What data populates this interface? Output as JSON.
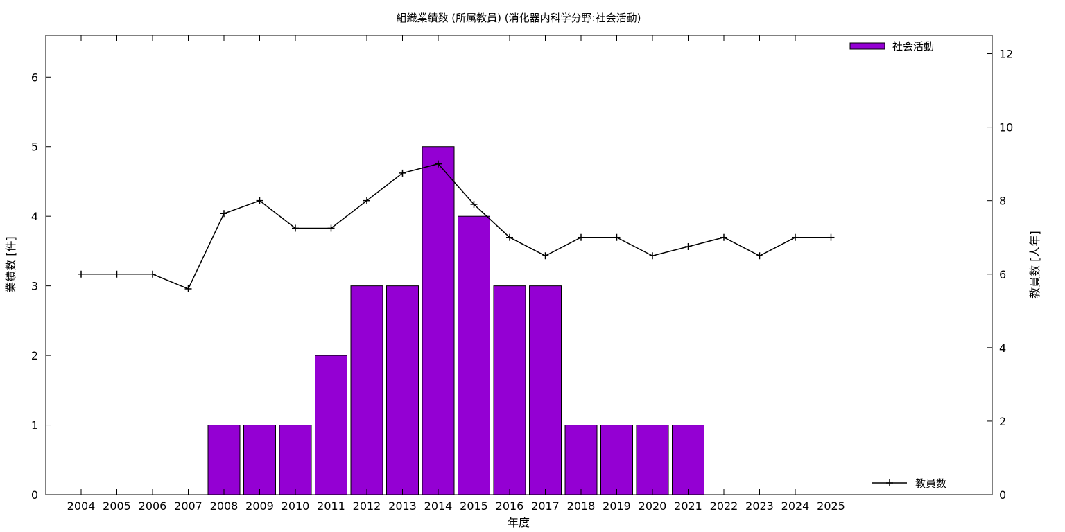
{
  "chart_data": {
    "type": "bar",
    "title": "組織業績数 (所属教員) (消化器内科学分野:社会活動)",
    "xlabel": "年度",
    "ylabel": "業績数 [件]",
    "y2label": "教員数 [人年]",
    "categories": [
      "2004",
      "2005",
      "2006",
      "2007",
      "2008",
      "2009",
      "2010",
      "2011",
      "2012",
      "2013",
      "2014",
      "2015",
      "2016",
      "2017",
      "2018",
      "2019",
      "2020",
      "2021",
      "2022",
      "2023",
      "2024",
      "2025"
    ],
    "ylim": [
      0,
      6.6
    ],
    "yticks": [
      0,
      1,
      2,
      3,
      4,
      5,
      6
    ],
    "y2lim": [
      0,
      12.5
    ],
    "y2ticks": [
      0,
      2,
      4,
      6,
      8,
      10,
      12
    ],
    "grid": false,
    "series": [
      {
        "name": "社会活動",
        "type": "bar",
        "axis": "left",
        "color": "#9400d3",
        "values": [
          0,
          0,
          0,
          0,
          1,
          1,
          1,
          2,
          3,
          3,
          5,
          4,
          3,
          3,
          1,
          1,
          1,
          1,
          0,
          0,
          0,
          0
        ],
        "legend_position": "top-right"
      },
      {
        "name": "教員数",
        "type": "line",
        "axis": "right",
        "color": "#000000",
        "marker": "plus",
        "values": [
          6,
          6,
          6,
          5.6,
          7.65,
          8,
          7.25,
          7.25,
          8,
          8.75,
          9,
          7.9,
          7,
          6.5,
          7,
          7,
          6.5,
          6.75,
          7,
          6.5,
          7,
          7
        ],
        "legend_position": "bottom-right"
      }
    ]
  }
}
